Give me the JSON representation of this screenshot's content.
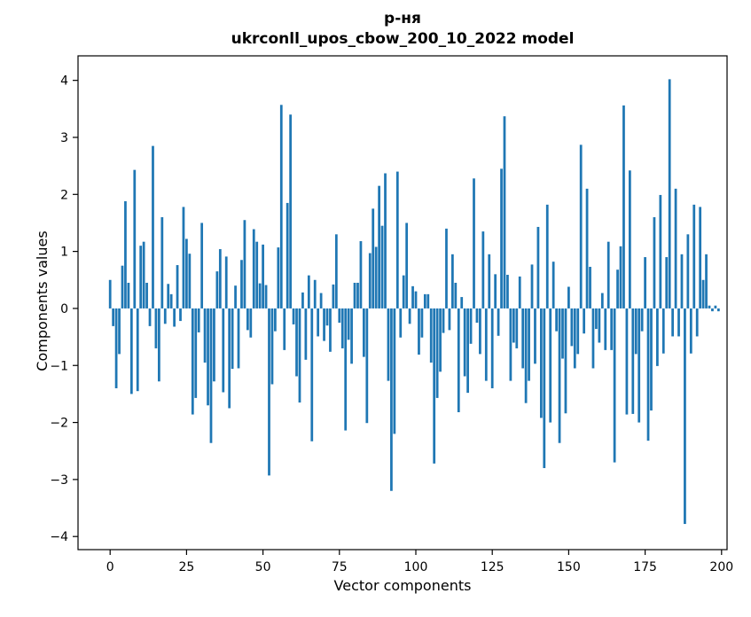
{
  "figure": {
    "title_line1": "р-ня",
    "title_line2": "ukrconll_upos_cbow_200_10_2022 model"
  },
  "chart_data": {
    "type": "bar",
    "title": "р-ня\nukrconll_upos_cbow_200_10_2022 model",
    "xlabel": "Vector components",
    "ylabel": "Components values",
    "x_start": 0,
    "n_components": 200,
    "bar_color": "#1f77b4",
    "background_color": "#ffffff",
    "spine_color": "#000000",
    "grid": false,
    "legend": null,
    "xticks": [
      0,
      25,
      50,
      75,
      100,
      125,
      150,
      175,
      200
    ],
    "yticks": [
      -4,
      -3,
      -2,
      -1,
      0,
      1,
      2,
      3,
      4
    ],
    "xlim": [
      -10.5,
      201.8
    ],
    "ylim": [
      -4.23,
      4.43
    ],
    "values": [
      0.5,
      -0.31,
      -1.4,
      -0.8,
      0.75,
      1.88,
      0.45,
      -1.5,
      2.43,
      -1.45,
      1.1,
      1.17,
      0.45,
      -0.31,
      2.85,
      -0.7,
      -1.28,
      1.6,
      -0.27,
      0.43,
      0.25,
      -0.32,
      0.76,
      -0.22,
      1.78,
      1.22,
      0.96,
      -1.86,
      -1.57,
      -0.42,
      1.5,
      -0.95,
      -1.7,
      -2.36,
      -1.28,
      0.65,
      1.04,
      -1.47,
      0.91,
      -1.75,
      -1.06,
      0.4,
      -1.05,
      0.85,
      1.55,
      -0.38,
      -0.51,
      1.39,
      1.17,
      0.44,
      1.12,
      0.41,
      -2.93,
      -1.33,
      -0.4,
      1.07,
      3.57,
      -0.73,
      1.85,
      3.4,
      -0.28,
      -1.19,
      -1.65,
      0.28,
      -0.9,
      0.58,
      -2.33,
      0.5,
      -0.49,
      0.27,
      -0.57,
      -0.3,
      -0.76,
      0.42,
      1.3,
      -0.25,
      -0.7,
      -2.14,
      -0.55,
      -0.97,
      0.45,
      0.45,
      1.18,
      -0.85,
      -2.01,
      0.97,
      1.75,
      1.08,
      2.15,
      1.45,
      2.37,
      -1.27,
      -3.2,
      -2.2,
      2.4,
      -0.51,
      0.58,
      1.5,
      -0.27,
      0.39,
      0.3,
      -0.81,
      -0.51,
      0.25,
      0.25,
      -0.95,
      -2.72,
      -1.57,
      -1.11,
      -0.43,
      1.4,
      -0.38,
      0.95,
      0.45,
      -1.82,
      0.2,
      -1.19,
      -1.48,
      -0.62,
      2.28,
      -0.25,
      -0.8,
      1.35,
      -1.27,
      0.95,
      -1.4,
      0.6,
      -0.48,
      2.45,
      3.37,
      0.59,
      -1.27,
      -0.6,
      -0.7,
      0.56,
      -1.05,
      -1.66,
      -1.27,
      0.77,
      -0.97,
      1.43,
      -1.92,
      -2.8,
      1.82,
      -2.0,
      0.82,
      -0.4,
      -2.36,
      -0.88,
      -1.84,
      0.38,
      -0.66,
      -1.05,
      -0.8,
      2.87,
      -0.44,
      2.1,
      0.73,
      -1.05,
      -0.36,
      -0.6,
      0.27,
      -0.73,
      1.17,
      -0.73,
      -2.7,
      0.68,
      1.09,
      3.56,
      -1.86,
      2.42,
      -1.85,
      -0.8,
      -2.0,
      -0.4,
      0.9,
      -2.32,
      -1.79,
      1.6,
      -1.01,
      1.99,
      -0.79,
      0.9,
      4.02,
      -0.49,
      2.1,
      -0.49,
      0.95,
      -3.78,
      1.3,
      -0.79,
      1.82,
      -0.49,
      1.78,
      0.5,
      0.95,
      0.05,
      -0.05,
      0.05,
      -0.05
    ]
  }
}
